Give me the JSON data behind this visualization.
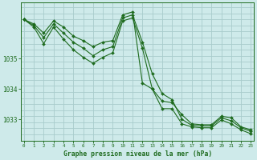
{
  "title": "Graphe pression niveau de la mer (hPa)",
  "background_color": "#ceeaea",
  "grid_color": "#a8cccc",
  "line_color": "#1e6b1e",
  "x_ticks": [
    0,
    1,
    2,
    3,
    4,
    5,
    6,
    7,
    8,
    9,
    10,
    11,
    12,
    13,
    14,
    15,
    16,
    17,
    18,
    19,
    20,
    21,
    22,
    23
  ],
  "y_ticks": [
    1033,
    1034,
    1035
  ],
  "ylim": [
    1032.3,
    1036.85
  ],
  "xlim": [
    -0.3,
    23.3
  ],
  "series": [
    {
      "x": [
        0,
        1,
        2,
        3,
        4,
        5,
        6,
        7,
        8,
        9,
        10,
        11,
        12,
        13,
        14,
        15,
        16,
        17,
        18,
        19,
        20,
        21,
        22,
        23
      ],
      "y": [
        1036.3,
        1036.15,
        1035.85,
        1036.25,
        1036.05,
        1035.75,
        1035.6,
        1035.4,
        1035.55,
        1035.6,
        1036.45,
        1036.55,
        1034.2,
        1034.0,
        1033.6,
        1033.55,
        1033.15,
        1032.85,
        1032.82,
        1032.82,
        1033.1,
        1033.05,
        1032.75,
        1032.65
      ]
    },
    {
      "x": [
        0,
        1,
        2,
        3,
        4,
        5,
        6,
        7,
        8,
        9,
        10,
        11,
        12,
        13,
        14,
        15,
        16,
        17,
        18,
        19,
        20,
        21,
        22,
        23
      ],
      "y": [
        1036.3,
        1036.1,
        1035.7,
        1036.15,
        1035.85,
        1035.55,
        1035.35,
        1035.1,
        1035.3,
        1035.4,
        1036.35,
        1036.45,
        1035.55,
        1034.5,
        1033.85,
        1033.65,
        1033.0,
        1032.8,
        1032.78,
        1032.78,
        1033.05,
        1032.95,
        1032.72,
        1032.6
      ]
    },
    {
      "x": [
        0,
        1,
        2,
        3,
        4,
        5,
        6,
        7,
        8,
        9,
        10,
        11,
        12,
        13,
        14,
        15,
        16,
        17,
        18,
        19,
        20,
        21,
        22,
        23
      ],
      "y": [
        1036.3,
        1036.05,
        1035.5,
        1036.05,
        1035.65,
        1035.3,
        1035.05,
        1034.85,
        1035.05,
        1035.2,
        1036.25,
        1036.35,
        1035.35,
        1034.0,
        1033.35,
        1033.35,
        1032.85,
        1032.75,
        1032.72,
        1032.72,
        1032.98,
        1032.85,
        1032.65,
        1032.52
      ]
    }
  ]
}
